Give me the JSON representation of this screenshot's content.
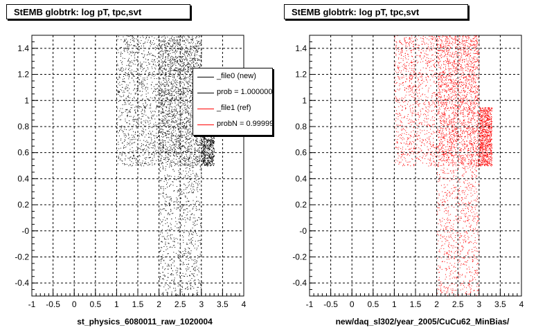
{
  "panels": [
    {
      "title": "StEMB globtrk: log pT, tpc,svt",
      "xlabel": "st_physics_6080011_raw_1020004",
      "marker_color": "#000000"
    },
    {
      "title": "StEMB globtrk: log pT, tpc,svt",
      "xlabel": "new/daq_sl302/year_2005/CuCu62_MinBias/",
      "marker_color": "#ff0000"
    }
  ],
  "legend": {
    "entries": [
      {
        "label": "_file0 (new)",
        "color": "#000000"
      },
      {
        "label": "prob = 1.000000",
        "color": "#000000"
      },
      {
        "label": "_file1 (ref)",
        "color": "#ff0000"
      },
      {
        "label": "probN = 0.999999",
        "color": "#ff0000"
      }
    ]
  },
  "chart_data": [
    {
      "type": "scatter",
      "title": "StEMB globtrk: log pT, tpc,svt",
      "xlabel": "st_physics_6080011_raw_1020004",
      "ylabel": "",
      "xlim": [
        -1,
        4
      ],
      "ylim": [
        -0.5,
        1.5
      ],
      "xticks": [
        "-1",
        "-0.5",
        "0",
        "0.5",
        "1",
        "1.5",
        "2",
        "2.5",
        "3",
        "3.5",
        "4"
      ],
      "yticks": [
        "-0.4",
        "-0.2",
        "-0",
        "0.2",
        "0.4",
        "0.6",
        "0.8",
        "1",
        "1.2",
        "1.4"
      ],
      "grid": true,
      "series": [
        {
          "color": "#000000",
          "regions": [
            {
              "x": [
                1.0,
                2.0
              ],
              "y": [
                0.5,
                1.5
              ],
              "density": 0.45
            },
            {
              "x": [
                2.0,
                3.0
              ],
              "y": [
                0.5,
                1.5
              ],
              "density": 1.0
            },
            {
              "x": [
                3.0,
                3.3
              ],
              "y": [
                0.5,
                0.95
              ],
              "density": 0.4
            },
            {
              "x": [
                2.0,
                3.0
              ],
              "y": [
                -0.5,
                0.5
              ],
              "density": 0.35
            }
          ]
        }
      ]
    },
    {
      "type": "scatter",
      "title": "StEMB globtrk: log pT, tpc,svt",
      "xlabel": "new/daq_sl302/year_2005/CuCu62_MinBias/",
      "ylabel": "",
      "xlim": [
        -1,
        4
      ],
      "ylim": [
        -0.5,
        1.5
      ],
      "xticks": [
        "-1",
        "-0.5",
        "0",
        "0.5",
        "1",
        "1.5",
        "2",
        "2.5",
        "3",
        "3.5",
        "4"
      ],
      "yticks": [
        "-0.4",
        "-0.2",
        "-0",
        "0.2",
        "0.4",
        "0.6",
        "0.8",
        "1",
        "1.2",
        "1.4"
      ],
      "grid": true,
      "series": [
        {
          "color": "#ff0000",
          "regions": [
            {
              "x": [
                1.0,
                2.0
              ],
              "y": [
                0.5,
                1.5
              ],
              "density": 0.45
            },
            {
              "x": [
                2.0,
                3.0
              ],
              "y": [
                0.5,
                1.5
              ],
              "density": 1.0
            },
            {
              "x": [
                3.0,
                3.3
              ],
              "y": [
                0.5,
                0.95
              ],
              "density": 0.4
            },
            {
              "x": [
                2.0,
                3.0
              ],
              "y": [
                -0.5,
                0.5
              ],
              "density": 0.35
            }
          ]
        }
      ]
    }
  ]
}
